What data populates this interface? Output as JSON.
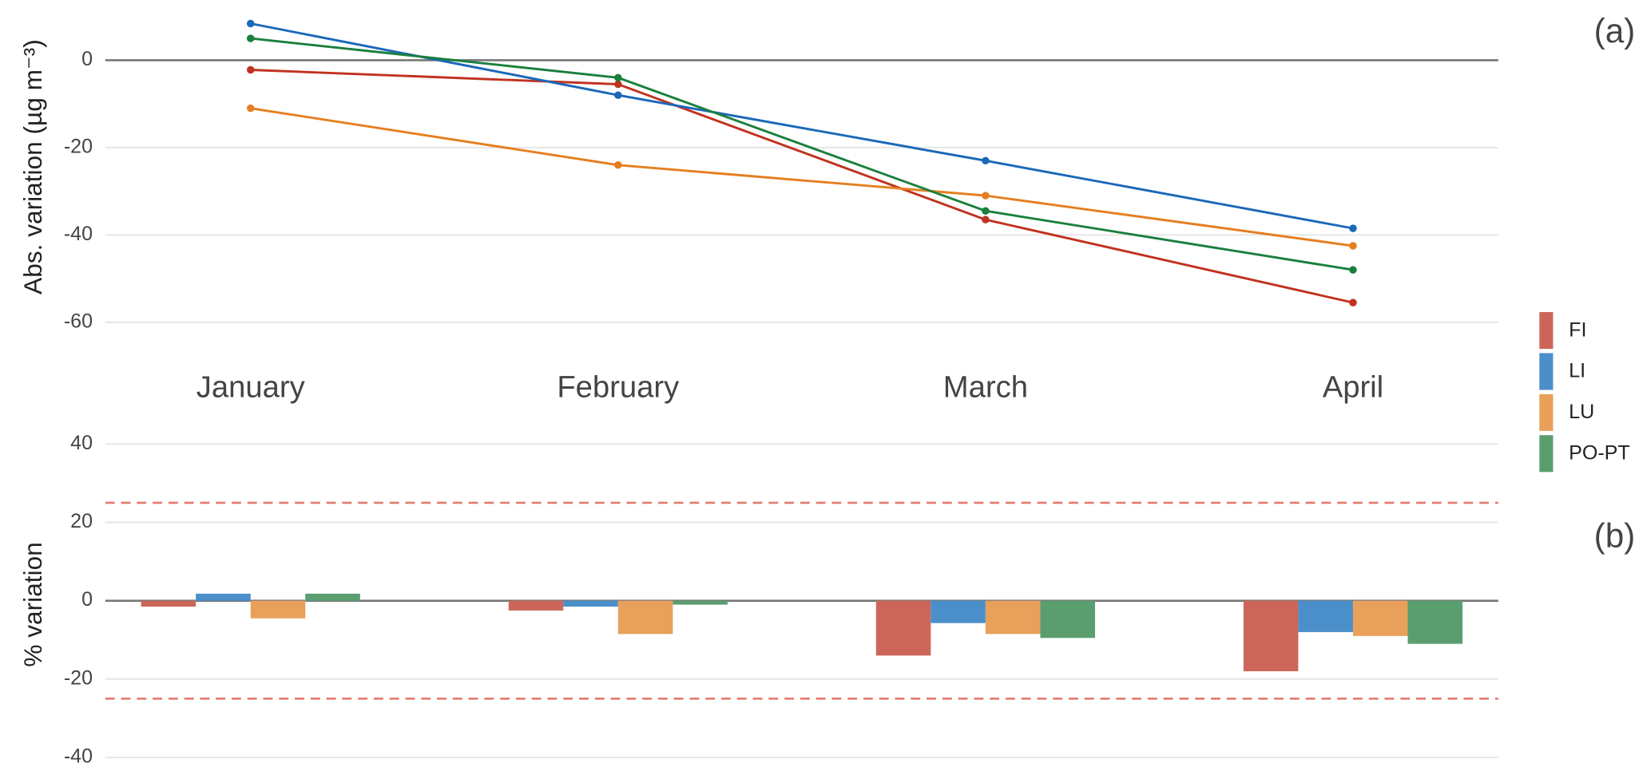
{
  "chart_data": [
    {
      "type": "line",
      "panel_label": "(a)",
      "y_label": "Abs. variation (µg m⁻³)",
      "categories": [
        "January",
        "February",
        "March",
        "April"
      ],
      "ylim": [
        -62,
        11
      ],
      "yticks": [
        0,
        -20,
        -40,
        -60
      ],
      "grid": true,
      "series": [
        {
          "color": "#c0321f",
          "values": [
            -2.2,
            -5.5,
            -36.5,
            -55.5
          ]
        },
        {
          "color": "#1a68b8",
          "values": [
            8.4,
            -8,
            -23,
            -38.5
          ]
        },
        {
          "color": "#e67e1f",
          "values": [
            -11,
            -24,
            -31,
            -42.5
          ]
        },
        {
          "color": "#1a7f3c",
          "values": [
            5,
            -4,
            -34.5,
            -48
          ]
        }
      ]
    },
    {
      "type": "bar",
      "panel_label": "(b)",
      "y_label": "% variation",
      "ylim": [
        -41,
        42
      ],
      "yticks": [
        40,
        20,
        0,
        -20,
        -40
      ],
      "grid": true,
      "hlines": [
        25,
        -25
      ],
      "hline_color": "#e07b72",
      "legend": "right",
      "series": [
        {
          "name": "FI",
          "color": "#cd665a",
          "values": [
            -1.5,
            -2.5,
            -14,
            -18
          ]
        },
        {
          "name": "LI",
          "color": "#4a8fca",
          "values": [
            1.8,
            -1.5,
            -5.7,
            -8
          ]
        },
        {
          "name": "LU",
          "color": "#e9a05a",
          "values": [
            -4.5,
            -8.5,
            -8.5,
            -9
          ]
        },
        {
          "name": "PO-PT",
          "color": "#5a9e6f",
          "values": [
            1.8,
            -1,
            -9.5,
            -11
          ]
        }
      ]
    }
  ]
}
